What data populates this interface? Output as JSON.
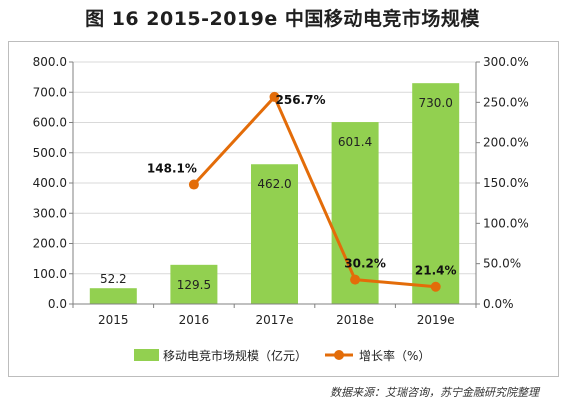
{
  "title": "图 16  2015-2019e 中国移动电竞市场规模",
  "source": "数据来源：艾瑞咨询，苏宁金融研究院整理",
  "colors": {
    "bar": "#92d050",
    "line": "#e36c09",
    "grid": "#d9d9d9",
    "axis": "#808080"
  },
  "chart_data": {
    "type": "bar+line",
    "categories": [
      "2015",
      "2016",
      "2017e",
      "2018e",
      "2019e"
    ],
    "series": [
      {
        "name": "移动电竞市场规模（亿元）",
        "type": "bar",
        "axis": "left",
        "values": [
          52.2,
          129.5,
          462.0,
          601.4,
          730.0
        ],
        "labels": [
          "52.2",
          "129.5",
          "462.0",
          "601.4",
          "730.0"
        ]
      },
      {
        "name": "增长率（%）",
        "type": "line",
        "axis": "right",
        "values": [
          null,
          148.1,
          256.7,
          30.2,
          21.4
        ],
        "labels": [
          "",
          "148.1%",
          "256.7%",
          "30.2%",
          "21.4%"
        ]
      }
    ],
    "y_left": {
      "min": 0,
      "max": 800,
      "step": 100,
      "ticks": [
        "0.0",
        "100.0",
        "200.0",
        "300.0",
        "400.0",
        "500.0",
        "600.0",
        "700.0",
        "800.0"
      ]
    },
    "y_right": {
      "min": 0,
      "max": 300,
      "step": 50,
      "ticks": [
        "0.0%",
        "50.0%",
        "100.0%",
        "150.0%",
        "200.0%",
        "250.0%",
        "300.0%"
      ]
    },
    "grid": true,
    "legend_position": "bottom"
  }
}
